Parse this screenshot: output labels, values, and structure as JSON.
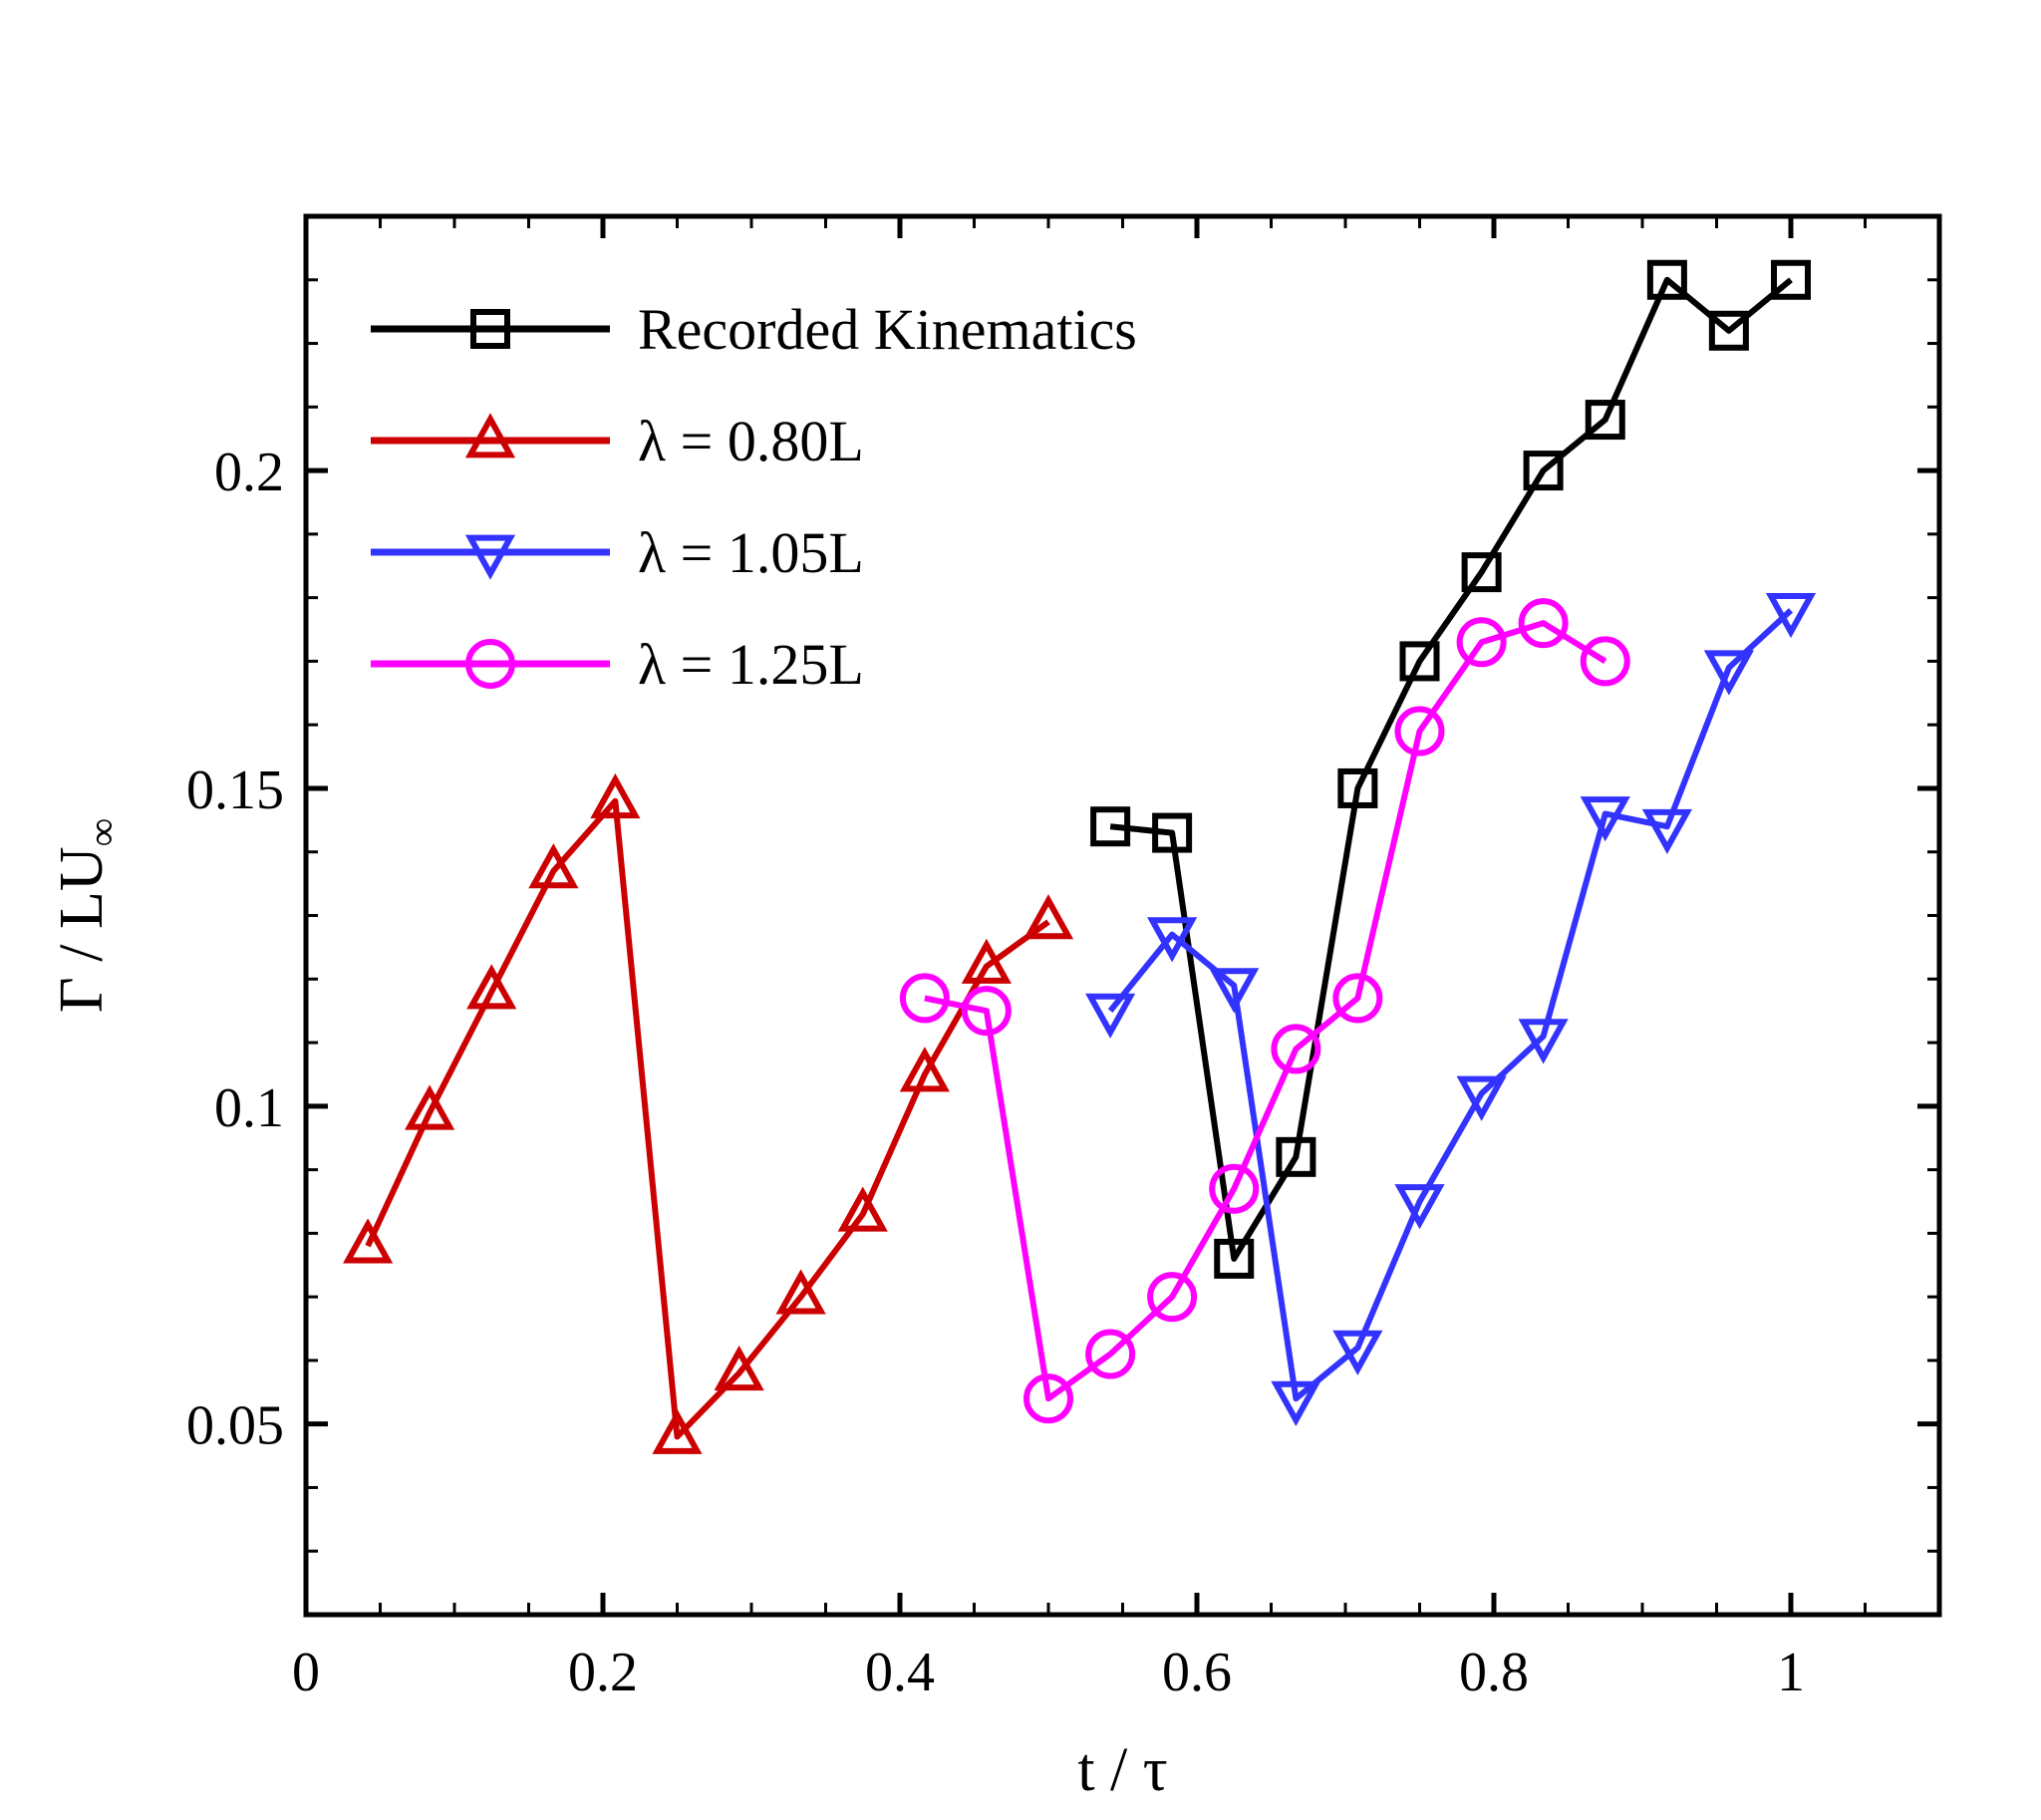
{
  "chart_data": {
    "type": "line",
    "xlabel": "t / τ",
    "ylabel": "Γ / LU",
    "ylabel_subscript": "∞",
    "xlim": [
      0,
      1.1
    ],
    "ylim": [
      0.02,
      0.24
    ],
    "x_major_ticks": [
      0,
      0.2,
      0.4,
      0.6,
      0.8,
      1
    ],
    "x_tick_labels": [
      "0",
      "0.2",
      "0.4",
      "0.6",
      "0.8",
      "1"
    ],
    "x_minor_step": 0.05,
    "y_major_ticks": [
      0.05,
      0.1,
      0.15,
      0.2
    ],
    "y_tick_labels": [
      "0.05",
      "0.1",
      "0.15",
      "0.2"
    ],
    "y_minor_step": 0.01,
    "grid": false,
    "legend_position": "top-left",
    "series": [
      {
        "name": "Recorded Kinematics",
        "color": "#000000",
        "marker": "square",
        "x": [
          0.5417,
          0.5833,
          0.625,
          0.6667,
          0.7083,
          0.75,
          0.7917,
          0.8333,
          0.875,
          0.9167,
          0.9583,
          1.0
        ],
        "y": [
          0.144,
          0.143,
          0.076,
          0.092,
          0.15,
          0.17,
          0.184,
          0.2,
          0.208,
          0.23,
          0.222,
          0.23
        ]
      },
      {
        "name": "λ = 0.80L",
        "color": "#cc0000",
        "marker": "triangle-up",
        "x": [
          0.0417,
          0.0833,
          0.125,
          0.1667,
          0.2083,
          0.25,
          0.2917,
          0.3333,
          0.375,
          0.4167,
          0.4583,
          0.5
        ],
        "y": [
          0.078,
          0.099,
          0.118,
          0.137,
          0.148,
          0.048,
          0.058,
          0.07,
          0.083,
          0.105,
          0.122,
          0.129
        ]
      },
      {
        "name": "λ = 1.05L",
        "color": "#3333ff",
        "marker": "triangle-down",
        "x": [
          0.5417,
          0.5833,
          0.625,
          0.6667,
          0.7083,
          0.75,
          0.7917,
          0.8333,
          0.875,
          0.9167,
          0.9583,
          1.0
        ],
        "y": [
          0.115,
          0.127,
          0.119,
          0.054,
          0.062,
          0.085,
          0.102,
          0.111,
          0.146,
          0.144,
          0.169,
          0.178
        ]
      },
      {
        "name": "λ = 1.25L",
        "color": "#ff00ff",
        "marker": "circle",
        "x": [
          0.4167,
          0.4583,
          0.5,
          0.5417,
          0.5833,
          0.625,
          0.6667,
          0.7083,
          0.75,
          0.7917,
          0.8333,
          0.875
        ],
        "y": [
          0.117,
          0.115,
          0.054,
          0.061,
          0.07,
          0.087,
          0.109,
          0.117,
          0.159,
          0.173,
          0.176,
          0.17
        ]
      }
    ]
  }
}
